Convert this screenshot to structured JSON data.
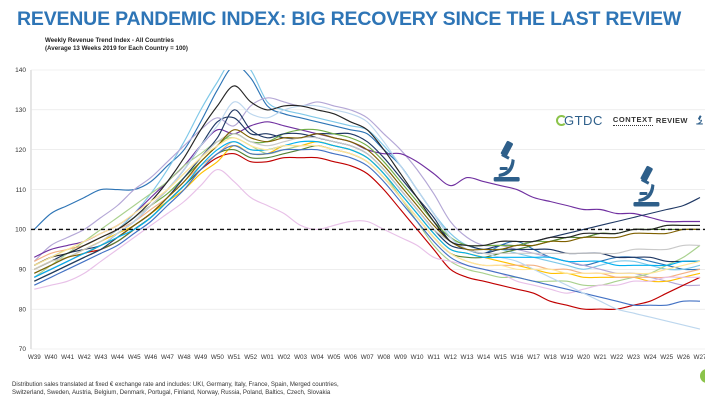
{
  "header": {
    "title": "REVENUE PANDEMIC INDEX: BIG RECOVERY SINCE THE LAST REVIEW"
  },
  "brand": {
    "logo_text": "GTDC",
    "context_text": "CONTEXT",
    "review_text": "REVIEW",
    "logo_color": "#2e5f8a",
    "logo_accent": "#8bc34a"
  },
  "icons": {
    "brand_icon": "microscope-icon",
    "marker_icon": "microscope-icon"
  },
  "chart_data": {
    "type": "line",
    "title": "Weekly Revenue Trend Index - All Countries",
    "subtitle": "(Average 13 Weeks 2019 for Each Country = 100)",
    "categories": [
      "W39",
      "W40",
      "W41",
      "W42",
      "W43",
      "W44",
      "W45",
      "W46",
      "W47",
      "W48",
      "W49",
      "W50",
      "W51",
      "W52",
      "W01",
      "W02",
      "W03",
      "W04",
      "W05",
      "W06",
      "W07",
      "W08",
      "W09",
      "W10",
      "W11",
      "W12",
      "W13",
      "W14",
      "W15",
      "W16",
      "W17",
      "W18",
      "W19",
      "W20",
      "W21",
      "W22",
      "W23",
      "W24",
      "W25",
      "W26",
      "W27"
    ],
    "ylim": [
      70,
      140
    ],
    "yticks": [
      70,
      80,
      90,
      100,
      110,
      120,
      130,
      140
    ],
    "reference_line": 100,
    "grid": true,
    "legend": "none",
    "markers": [
      "W14",
      "W23"
    ],
    "series": [
      {
        "color": "#2e75b6",
        "values": [
          100,
          104,
          106,
          108,
          110,
          110,
          110,
          112,
          116,
          120,
          127,
          135,
          141,
          138,
          131,
          129,
          128,
          127,
          126,
          125,
          124,
          120,
          116,
          110,
          104,
          98,
          95,
          94,
          96,
          97,
          95,
          93,
          92,
          91,
          92,
          93,
          93,
          92,
          91,
          90,
          90
        ]
      },
      {
        "color": "#7fc8e8",
        "values": [
          89,
          91,
          93,
          95,
          97,
          100,
          104,
          109,
          115,
          122,
          130,
          137,
          143,
          140,
          132,
          130,
          129,
          128,
          127,
          126,
          125,
          121,
          116,
          110,
          104,
          99,
          96,
          95,
          95,
          94,
          93,
          92,
          91,
          90,
          91,
          92,
          92,
          91,
          90,
          90,
          91
        ]
      },
      {
        "color": "#b4a7d6",
        "values": [
          92,
          96,
          98,
          100,
          103,
          106,
          110,
          113,
          117,
          121,
          125,
          128,
          126,
          131,
          133,
          132,
          131,
          132,
          131,
          130,
          128,
          124,
          120,
          115,
          109,
          102,
          98,
          96,
          96,
          95,
          94,
          93,
          92,
          91,
          90,
          89,
          89,
          88,
          87,
          86,
          86
        ]
      },
      {
        "color": "#7030a0",
        "values": [
          93,
          95,
          96,
          97,
          99,
          101,
          104,
          108,
          112,
          116,
          121,
          125,
          124,
          126,
          127,
          126,
          125,
          124,
          123,
          122,
          120,
          119,
          119,
          117,
          114,
          111,
          113,
          112,
          111,
          110,
          108,
          107,
          106,
          105,
          105,
          104,
          104,
          103,
          102,
          102,
          102
        ]
      },
      {
        "color": "#1f3864",
        "values": [
          90,
          92,
          94,
          95,
          96,
          99,
          102,
          106,
          110,
          115,
          121,
          127,
          128,
          124,
          124,
          123,
          123,
          124,
          124,
          124,
          122,
          118,
          113,
          108,
          103,
          97,
          96,
          95,
          96,
          96,
          97,
          98,
          99,
          100,
          101,
          102,
          103,
          104,
          105,
          106,
          108
        ]
      },
      {
        "color": "#a9d18e",
        "values": [
          88,
          91,
          94,
          97,
          100,
          103,
          106,
          109,
          112,
          116,
          119,
          122,
          123,
          121,
          119,
          120,
          121,
          122,
          121,
          120,
          118,
          114,
          108,
          102,
          96,
          92,
          90,
          89,
          88,
          88,
          87,
          87,
          87,
          86,
          86,
          87,
          88,
          89,
          91,
          93,
          96
        ]
      },
      {
        "color": "#c00000",
        "values": [
          88,
          90,
          92,
          94,
          95,
          97,
          100,
          103,
          107,
          111,
          115,
          118,
          119,
          117,
          117,
          118,
          118,
          118,
          117,
          116,
          114,
          110,
          105,
          100,
          95,
          90,
          88,
          87,
          86,
          85,
          84,
          82,
          81,
          80,
          80,
          80,
          81,
          82,
          84,
          86,
          88
        ]
      },
      {
        "color": "#ffc000",
        "values": [
          90,
          92,
          93,
          95,
          97,
          99,
          101,
          104,
          107,
          110,
          114,
          117,
          121,
          119,
          119,
          121,
          121,
          122,
          121,
          120,
          118,
          114,
          109,
          104,
          99,
          95,
          94,
          93,
          92,
          91,
          90,
          89,
          89,
          88,
          88,
          88,
          88,
          87,
          87,
          88,
          89
        ]
      },
      {
        "color": "#70ad47",
        "values": [
          91,
          93,
          95,
          96,
          98,
          100,
          103,
          106,
          109,
          113,
          117,
          121,
          124,
          122,
          122,
          124,
          125,
          125,
          124,
          123,
          121,
          117,
          112,
          107,
          102,
          98,
          96,
          96,
          96,
          96,
          97,
          97,
          98,
          98,
          99,
          99,
          100,
          100,
          101,
          101,
          101
        ]
      },
      {
        "color": "#548235",
        "values": [
          87,
          89,
          91,
          93,
          95,
          97,
          100,
          103,
          107,
          111,
          115,
          119,
          120,
          118,
          118,
          119,
          120,
          121,
          120,
          119,
          117,
          113,
          108,
          103,
          98,
          94,
          93,
          93,
          94,
          95,
          96,
          97,
          98,
          98,
          99,
          99,
          100,
          100,
          100,
          100,
          100
        ]
      },
      {
        "color": "#f4b183",
        "values": [
          92,
          94,
          95,
          96,
          98,
          100,
          102,
          105,
          108,
          112,
          116,
          119,
          122,
          120,
          120,
          121,
          121,
          121,
          120,
          119,
          117,
          113,
          108,
          103,
          98,
          94,
          92,
          91,
          91,
          91,
          91,
          90,
          90,
          89,
          89,
          88,
          88,
          88,
          88,
          89,
          90
        ]
      },
      {
        "color": "#e8c1e8",
        "values": [
          85,
          86,
          87,
          89,
          92,
          95,
          98,
          101,
          104,
          107,
          111,
          115,
          112,
          108,
          106,
          104,
          101,
          100,
          101,
          102,
          102,
          100,
          98,
          96,
          93,
          92,
          91,
          90,
          89,
          87,
          86,
          85,
          84,
          85,
          86,
          86,
          87,
          87,
          88,
          88,
          88
        ]
      },
      {
        "color": "#203864",
        "values": [
          87,
          89,
          91,
          93,
          95,
          98,
          101,
          104,
          108,
          113,
          118,
          123,
          130,
          125,
          123,
          124,
          124,
          123,
          122,
          121,
          119,
          115,
          110,
          105,
          100,
          96,
          95,
          94,
          95,
          95,
          95,
          95,
          94,
          94,
          94,
          93,
          93,
          93,
          92,
          92,
          92
        ]
      },
      {
        "color": "#4472c4",
        "values": [
          86,
          88,
          90,
          92,
          94,
          96,
          99,
          102,
          106,
          110,
          115,
          119,
          121,
          119,
          119,
          120,
          120,
          120,
          119,
          118,
          116,
          112,
          107,
          102,
          97,
          93,
          91,
          90,
          89,
          88,
          87,
          86,
          85,
          84,
          83,
          82,
          81,
          81,
          81,
          82,
          82
        ]
      },
      {
        "color": "#bdd7ee",
        "values": [
          88,
          90,
          92,
          94,
          96,
          99,
          102,
          106,
          110,
          115,
          121,
          126,
          132,
          129,
          128,
          130,
          131,
          131,
          130,
          129,
          127,
          122,
          116,
          110,
          104,
          98,
          95,
          94,
          93,
          92,
          90,
          88,
          86,
          84,
          82,
          80,
          79,
          78,
          77,
          76,
          75
        ]
      },
      {
        "color": "#c9c9c9",
        "values": [
          90,
          92,
          93,
          95,
          97,
          100,
          103,
          106,
          110,
          114,
          118,
          122,
          124,
          122,
          121,
          122,
          123,
          123,
          122,
          121,
          119,
          115,
          110,
          105,
          100,
          97,
          95,
          94,
          94,
          94,
          94,
          94,
          94,
          94,
          94,
          94,
          95,
          95,
          95,
          96,
          96
        ]
      },
      {
        "color": "#7f6000",
        "values": [
          89,
          91,
          93,
          94,
          96,
          98,
          101,
          104,
          108,
          112,
          117,
          121,
          125,
          123,
          122,
          123,
          123,
          124,
          123,
          122,
          120,
          116,
          111,
          106,
          101,
          97,
          95,
          95,
          95,
          96,
          96,
          97,
          97,
          98,
          98,
          98,
          99,
          99,
          99,
          100,
          100
        ]
      },
      {
        "color": "#262626",
        "values": [
          91,
          93,
          94,
          96,
          98,
          100,
          103,
          107,
          112,
          118,
          125,
          131,
          136,
          132,
          130,
          131,
          131,
          130,
          129,
          127,
          125,
          120,
          114,
          108,
          102,
          97,
          96,
          96,
          97,
          97,
          97,
          98,
          98,
          99,
          99,
          99,
          100,
          100,
          101,
          101,
          101
        ]
      },
      {
        "color": "#00b0f0",
        "values": [
          88,
          90,
          92,
          94,
          96,
          98,
          100,
          103,
          107,
          111,
          116,
          120,
          122,
          120,
          120,
          121,
          122,
          122,
          121,
          120,
          118,
          114,
          109,
          104,
          99,
          95,
          94,
          93,
          93,
          93,
          93,
          93,
          92,
          92,
          92,
          91,
          91,
          91,
          91,
          92,
          92
        ]
      },
      {
        "color": "#ffe699",
        "values": [
          91,
          93,
          95,
          97,
          99,
          101,
          104,
          107,
          110,
          114,
          118,
          121,
          123,
          121,
          120,
          121,
          121,
          121,
          120,
          119,
          117,
          113,
          108,
          103,
          98,
          94,
          92,
          91,
          91,
          90,
          90,
          90,
          89,
          89,
          89,
          89,
          89,
          89,
          90,
          91,
          92
        ]
      }
    ]
  },
  "footnote": {
    "line1": "Distribution sales translated at fixed € exchange rate and includes: UKI, Germany, Italy, France, Spain, Merged countries,",
    "line2": "Switzerland, Sweden, Austria, Belgium, Denmark, Portugal, Finland, Norway, Russia, Poland, Baltics, Czech, Slovakia"
  }
}
